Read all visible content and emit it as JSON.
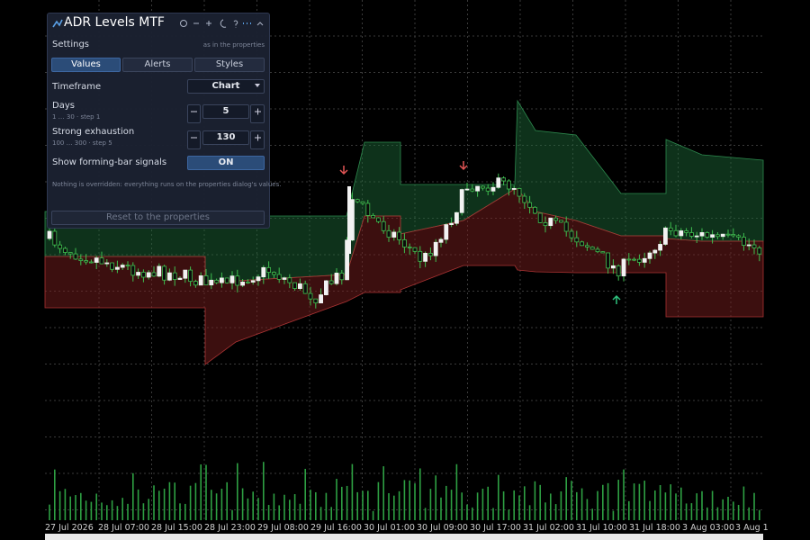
{
  "panel": {
    "title": "ADR Levels MTF",
    "section": "Settings",
    "section_note": "as in the properties",
    "tabs": [
      "Values",
      "Alerts",
      "Styles"
    ],
    "active_tab": "Values",
    "rows": [
      {
        "label": "Timeframe",
        "value": "Chart"
      },
      {
        "label": "Days",
        "hint": "1 … 30 · step 1",
        "value": 5
      },
      {
        "label": "Strong exhaustion",
        "hint": "100 … 300 · step 5",
        "value": 130
      },
      {
        "label": "Show forming-bar signals",
        "value": "ON"
      }
    ],
    "note": "Nothing is overridden: everything runs on the properties dialog's values.",
    "button": "Reset to the properties"
  },
  "chart": {
    "x_labels": [
      "27 Jul 2026",
      "28 Jul 07:00",
      "28 Jul 15:00",
      "28 Jul 23:00",
      "29 Jul 08:00",
      "29 Jul 16:00",
      "30 Jul 01:00",
      "30 Jul 09:00",
      "30 Jul 17:00",
      "31 Jul 02:00",
      "31 Jul 10:00",
      "31 Jul 18:00",
      "3 Aug 03:00",
      "3 Aug 1"
    ]
  }
}
